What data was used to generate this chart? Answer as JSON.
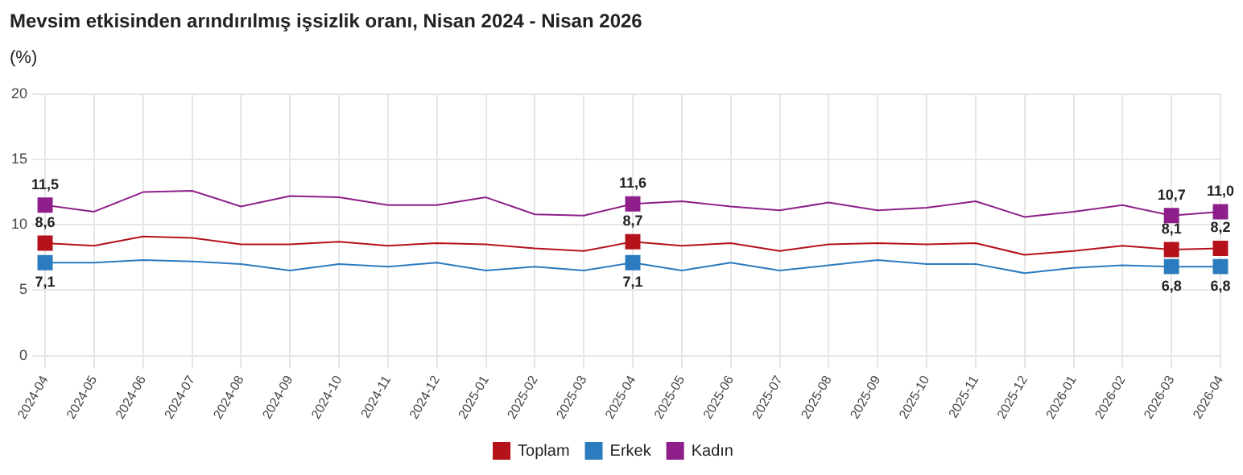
{
  "chart_data": {
    "type": "line",
    "title": "Mevsim etkisinden arındırılmış işsizlik oranı, Nisan 2024 - Nisan 2026",
    "subtitle": "(%)",
    "categories": [
      "2024-04",
      "2024-05",
      "2024-06",
      "2024-07",
      "2024-08",
      "2024-09",
      "2024-10",
      "2024-11",
      "2024-12",
      "2025-01",
      "2025-02",
      "2025-03",
      "2025-04",
      "2025-05",
      "2025-06",
      "2025-07",
      "2025-08",
      "2025-09",
      "2025-10",
      "2025-11",
      "2025-12",
      "2026-01",
      "2026-02",
      "2026-03",
      "2026-04"
    ],
    "series": [
      {
        "name": "Toplam",
        "color": "#b5121b",
        "values": [
          8.6,
          8.4,
          9.1,
          9.0,
          8.5,
          8.5,
          8.7,
          8.4,
          8.6,
          8.5,
          8.2,
          8.0,
          8.7,
          8.4,
          8.6,
          8.0,
          8.5,
          8.6,
          8.5,
          8.6,
          7.7,
          8.0,
          8.4,
          8.1,
          8.2
        ],
        "value_labels": [
          "8,6",
          null,
          null,
          null,
          null,
          null,
          null,
          null,
          null,
          null,
          null,
          null,
          "8,7",
          null,
          null,
          null,
          null,
          null,
          null,
          null,
          null,
          null,
          null,
          "8,1",
          "8,2"
        ]
      },
      {
        "name": "Erkek",
        "color": "#2b7bbf",
        "values": [
          7.1,
          7.1,
          7.3,
          7.2,
          7.0,
          6.5,
          7.0,
          6.8,
          7.1,
          6.5,
          6.8,
          6.5,
          7.1,
          6.5,
          7.1,
          6.5,
          6.9,
          7.3,
          7.0,
          7.0,
          6.3,
          6.7,
          6.9,
          6.8,
          6.8
        ],
        "value_labels": [
          "7,1",
          null,
          null,
          null,
          null,
          null,
          null,
          null,
          null,
          null,
          null,
          null,
          "7,1",
          null,
          null,
          null,
          null,
          null,
          null,
          null,
          null,
          null,
          null,
          "6,8",
          "6,8"
        ]
      },
      {
        "name": "Kadın",
        "color": "#8e1f8a",
        "values": [
          11.5,
          11.0,
          12.5,
          12.6,
          11.4,
          12.2,
          12.1,
          11.5,
          11.5,
          12.1,
          10.8,
          10.7,
          11.6,
          11.8,
          11.4,
          11.1,
          11.7,
          11.1,
          11.3,
          11.8,
          10.6,
          11.0,
          11.5,
          10.7,
          11.0
        ],
        "value_labels": [
          "11,5",
          null,
          null,
          null,
          null,
          null,
          null,
          null,
          null,
          null,
          null,
          null,
          "11,6",
          null,
          null,
          null,
          null,
          null,
          null,
          null,
          null,
          null,
          null,
          "10,7",
          "11,0"
        ]
      }
    ],
    "ylim": [
      0,
      20
    ],
    "yticks": [
      0,
      5,
      10,
      15,
      20
    ],
    "grid": true,
    "legend": "bottom",
    "line_style": "solid"
  }
}
